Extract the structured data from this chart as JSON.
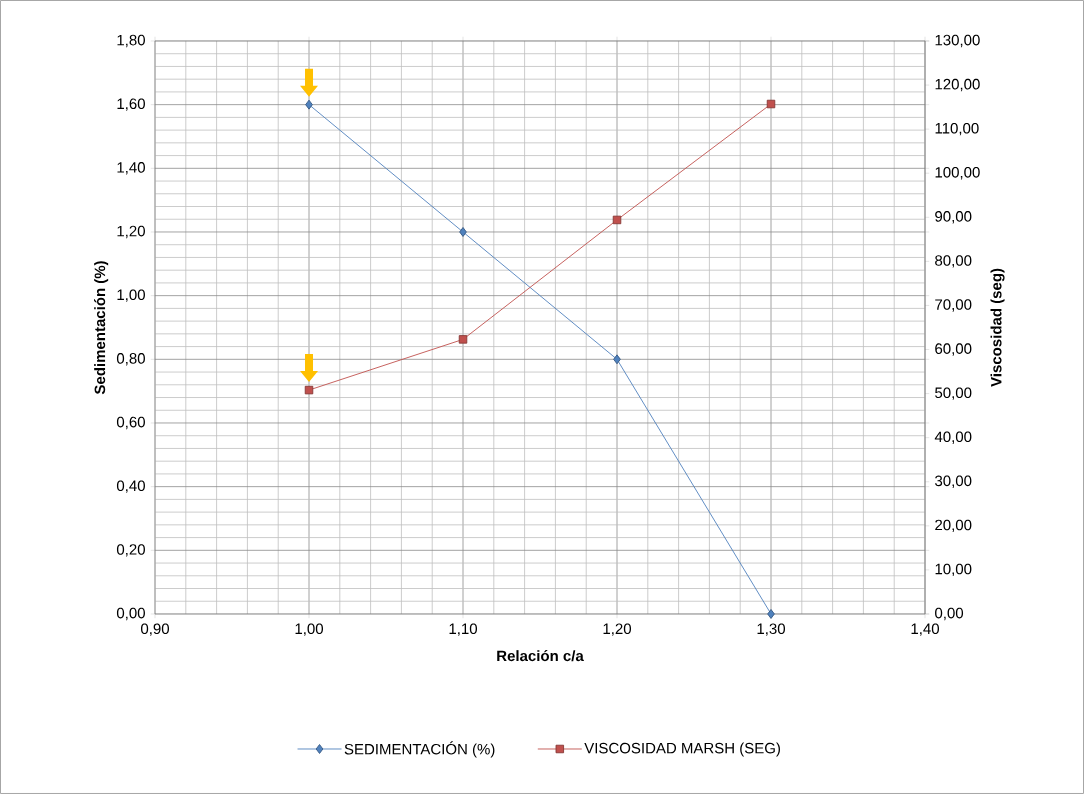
{
  "chart_data": {
    "type": "line",
    "xlabel": "Relación c/a",
    "ylabel": "Sedimentación (%)",
    "y2label": "Viscosidad (seg)",
    "x": [
      1.0,
      1.1,
      1.2,
      1.3
    ],
    "series": [
      {
        "name": "SEDIMENTACIÓN (%)",
        "color": "#4f81bd",
        "values": [
          1.6,
          1.2,
          0.8,
          0.0
        ],
        "marker": "diamond"
      },
      {
        "name": "VISCOSIDAD MARSH (SEG)",
        "color": "#c0504d",
        "values": [
          50.8,
          62.3,
          89.4,
          115.7
        ],
        "marker": "square",
        "axis": "y2"
      }
    ],
    "xlim": [
      0.9,
      1.4
    ],
    "xticks": [
      {
        "value": 0.9,
        "label": "0,90"
      },
      {
        "value": 1.0,
        "label": "1,00"
      },
      {
        "value": 1.1,
        "label": "1,10"
      },
      {
        "value": 1.2,
        "label": "1,20"
      },
      {
        "value": 1.3,
        "label": "1,30"
      },
      {
        "value": 1.4,
        "label": "1,40"
      }
    ],
    "ylim": [
      0,
      1.8
    ],
    "yticks": [
      {
        "value": 0,
        "label": "0,00"
      },
      {
        "value": 0.2,
        "label": "0,20"
      },
      {
        "value": 0.4,
        "label": "0,40"
      },
      {
        "value": 0.6,
        "label": "0,60"
      },
      {
        "value": 0.8,
        "label": "0,80"
      },
      {
        "value": 1.0,
        "label": "1,00"
      },
      {
        "value": 1.2,
        "label": "1,20"
      },
      {
        "value": 1.4,
        "label": "1,40"
      },
      {
        "value": 1.6,
        "label": "1,60"
      },
      {
        "value": 1.8,
        "label": "1,80"
      }
    ],
    "y2lim": [
      0,
      130
    ],
    "y2ticks": [
      {
        "value": 0,
        "label": "0,00"
      },
      {
        "value": 10,
        "label": "10,00"
      },
      {
        "value": 20,
        "label": "20,00"
      },
      {
        "value": 30,
        "label": "30,00"
      },
      {
        "value": 40,
        "label": "40,00"
      },
      {
        "value": 50,
        "label": "50,00"
      },
      {
        "value": 60,
        "label": "60,00"
      },
      {
        "value": 70,
        "label": "70,00"
      },
      {
        "value": 80,
        "label": "80,00"
      },
      {
        "value": 90,
        "label": "90,00"
      },
      {
        "value": 100,
        "label": "100,00"
      },
      {
        "value": 110,
        "label": "110,00"
      },
      {
        "value": 120,
        "label": "120,00"
      },
      {
        "value": 130,
        "label": "130,00"
      }
    ],
    "grid": true,
    "legend": "bottom",
    "line_style": "solid"
  }
}
